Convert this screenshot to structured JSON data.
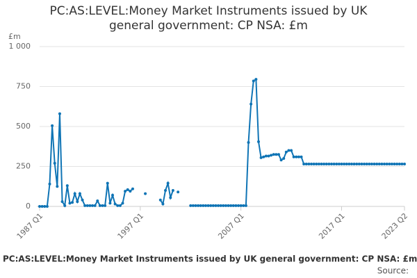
{
  "chart_data": {
    "type": "line",
    "title": "PC:AS:LEVEL:Money Market Instruments issued by UK general government: CP NSA: £m",
    "footer_title": "PC:AS:LEVEL:Money Market Instruments issued by UK general government: CP NSA: £m",
    "source": "Source:",
    "y_label": "£m",
    "categories": [
      "1987 Q1",
      null,
      null,
      null,
      null,
      null,
      null,
      null,
      null,
      null,
      null,
      null,
      null,
      null,
      null,
      null,
      null,
      null,
      null,
      null,
      null,
      null,
      null,
      null,
      null,
      null,
      null,
      null,
      null,
      null,
      null,
      null,
      null,
      null,
      null,
      null,
      null,
      null,
      null,
      null,
      "1997 Q1",
      null,
      null,
      null,
      null,
      null,
      null,
      null,
      null,
      null,
      null,
      null,
      null,
      null,
      null,
      null,
      null,
      null,
      null,
      null,
      null,
      null,
      null,
      null,
      null,
      null,
      null,
      null,
      null,
      null,
      null,
      null,
      null,
      null,
      null,
      null,
      null,
      null,
      null,
      null,
      "2007 Q1",
      null,
      null,
      null,
      null,
      null,
      null,
      null,
      null,
      null,
      null,
      null,
      null,
      null,
      null,
      null,
      null,
      null,
      null,
      null,
      null,
      null,
      null,
      null,
      null,
      null,
      null,
      null,
      null,
      null,
      null,
      null,
      null,
      null,
      null,
      null,
      null,
      null,
      null,
      null,
      "2017 Q1",
      null,
      null,
      null,
      null,
      null,
      null,
      null,
      null,
      null,
      null,
      null,
      null,
      null,
      null,
      null,
      null,
      null,
      null,
      null,
      null,
      null,
      null,
      null,
      null,
      "2023 Q2"
    ],
    "series": [
      {
        "color": "#0f74b5",
        "values": [
          0,
          0,
          0,
          0,
          140,
          505,
          270,
          125,
          580,
          30,
          5,
          130,
          20,
          25,
          80,
          30,
          80,
          40,
          5,
          5,
          5,
          5,
          5,
          35,
          5,
          5,
          5,
          145,
          20,
          70,
          15,
          5,
          5,
          20,
          95,
          105,
          95,
          110,
          null,
          null,
          null,
          null,
          80,
          null,
          null,
          null,
          null,
          null,
          40,
          15,
          100,
          145,
          55,
          100,
          null,
          90,
          null,
          null,
          null,
          null,
          5,
          5,
          5,
          5,
          5,
          5,
          5,
          5,
          5,
          5,
          5,
          5,
          5,
          5,
          5,
          5,
          5,
          5,
          5,
          5,
          5,
          5,
          5,
          400,
          640,
          785,
          795,
          405,
          305,
          310,
          315,
          315,
          320,
          325,
          325,
          325,
          290,
          300,
          340,
          350,
          350,
          310,
          310,
          310,
          310,
          265,
          265,
          265,
          265,
          265,
          265,
          265,
          265,
          265,
          265,
          265,
          265,
          265,
          265,
          265,
          265,
          265,
          265,
          265,
          265,
          265,
          265,
          265,
          265,
          265,
          265,
          265,
          265,
          265,
          265,
          265,
          265,
          265,
          265,
          265,
          265,
          265,
          265,
          265,
          265,
          265
        ]
      }
    ],
    "ylim": [
      0,
      1000
    ],
    "yticks": [
      0,
      250,
      500,
      750,
      {
        "value": 1000,
        "label": "1 000"
      }
    ],
    "grid": true
  }
}
